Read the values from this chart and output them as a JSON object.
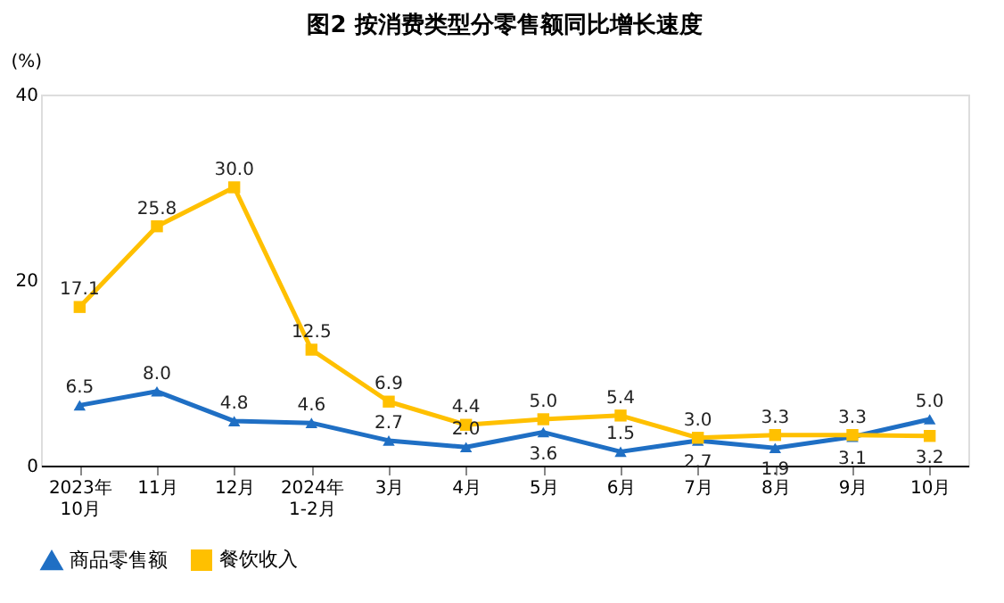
{
  "chart_data": {
    "type": "line",
    "title": "图2 按消费类型分零售额同比增长速度",
    "ylabel": "(%)",
    "categories": [
      "2023年\n10月",
      "11月",
      "12月",
      "2024年\n1-2月",
      "3月",
      "4月",
      "5月",
      "6月",
      "7月",
      "8月",
      "9月",
      "10月"
    ],
    "series": [
      {
        "name": "商品零售额",
        "color": "#1f6fc4",
        "marker": "triangle",
        "values": [
          6.5,
          8.0,
          4.8,
          4.6,
          2.7,
          2.0,
          3.6,
          1.5,
          2.7,
          1.9,
          3.1,
          5.0
        ],
        "value_labels": [
          "6.5",
          "8.0",
          "4.8",
          "4.6",
          "2.7",
          "2.0",
          "3.6",
          "1.5",
          "2.7",
          "1.9",
          "3.1",
          "5.0"
        ]
      },
      {
        "name": "餐饮收入",
        "color": "#ffc000",
        "marker": "square",
        "values": [
          17.1,
          25.8,
          30.0,
          12.5,
          6.9,
          4.4,
          5.0,
          5.4,
          3.0,
          3.3,
          3.3,
          3.2
        ],
        "value_labels": [
          "17.1",
          "25.8",
          "30.0",
          "12.5",
          "6.9",
          "4.4",
          "5.0",
          "5.4",
          "3.0",
          "3.3",
          "3.3",
          "3.2"
        ]
      }
    ],
    "ylim": [
      0,
      40
    ],
    "yticks": [
      0,
      20,
      40
    ],
    "grid": false,
    "legend": "bottom",
    "line_style": "solid"
  }
}
